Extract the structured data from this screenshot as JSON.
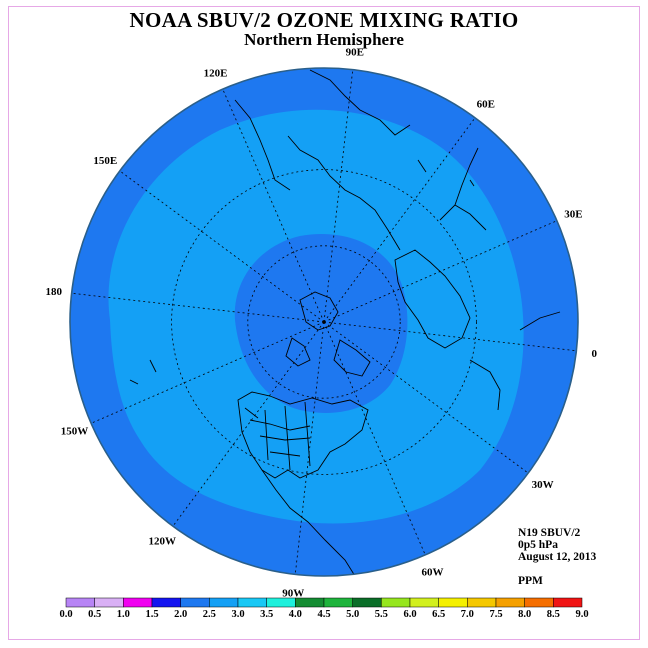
{
  "title": "NOAA SBUV/2 OZONE MIXING RATIO",
  "subtitle": "Northern Hemisphere",
  "info": {
    "instrument": "N19 SBUV/2",
    "level": "0p5 hPa",
    "date": "August 12, 2013",
    "units": "PPM"
  },
  "longitude_labels": [
    "90E",
    "60E",
    "30E",
    "0",
    "30W",
    "60W",
    "90W",
    "120W",
    "150W",
    "180",
    "150E",
    "120E"
  ],
  "colorbar": {
    "ticks": [
      "0.0",
      "0.5",
      "1.0",
      "1.5",
      "2.0",
      "2.5",
      "3.0",
      "3.5",
      "4.0",
      "4.5",
      "5.0",
      "5.5",
      "6.0",
      "6.5",
      "7.0",
      "7.5",
      "8.0",
      "8.5",
      "9.0"
    ],
    "colors": [
      "#b784f5",
      "#d9b0f5",
      "#f000f0",
      "#1414f0",
      "#1e78f0",
      "#14a0f5",
      "#19c8f5",
      "#1ef0dc",
      "#148c32",
      "#1eb43c",
      "#0a6e28",
      "#96e61e",
      "#d2f01e",
      "#f5f000",
      "#f5c800",
      "#f5a000",
      "#f56e00",
      "#f01414",
      "#8c5a3c"
    ]
  },
  "map": {
    "contour_colors": [
      "#1e78f0",
      "#14a0f5",
      "#19c8f5"
    ]
  }
}
